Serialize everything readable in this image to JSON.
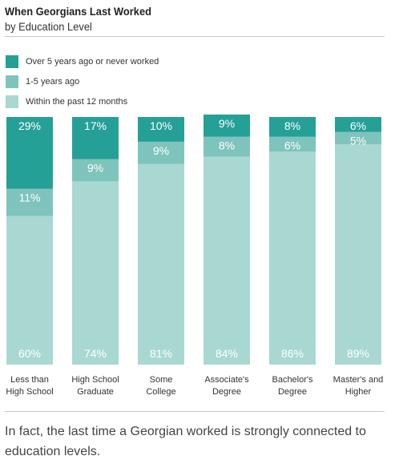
{
  "header": {
    "title": "When Georgians Last Worked",
    "subtitle": "by Education Level"
  },
  "colors": {
    "over5": "#25A097",
    "one_to_five": "#7FC4BC",
    "past12": "#A9D8D3",
    "bar_text": "#ffffff"
  },
  "legend": [
    {
      "label": "Over 5 years ago or never worked",
      "series": "over5"
    },
    {
      "label": "1-5 years ago",
      "series": "one_to_five"
    },
    {
      "label": "Within the past 12 months",
      "series": "past12"
    }
  ],
  "chart_data": {
    "type": "bar",
    "stacked": true,
    "orientation": "vertical",
    "categories": [
      [
        "Less than",
        "High School"
      ],
      [
        "High School",
        "Graduate"
      ],
      [
        "Some",
        "College"
      ],
      [
        "Associate's",
        "Degree"
      ],
      [
        "Bachelor's",
        "Degree"
      ],
      [
        "Master's and",
        "Higher"
      ]
    ],
    "series": [
      {
        "name": "Within the past 12 months",
        "key": "past12",
        "values": [
          60,
          74,
          81,
          84,
          86,
          89
        ]
      },
      {
        "name": "1-5 years ago",
        "key": "one_to_five",
        "values": [
          11,
          9,
          9,
          8,
          6,
          5
        ]
      },
      {
        "name": "Over 5 years ago or never worked",
        "key": "over5",
        "values": [
          29,
          17,
          10,
          9,
          8,
          6
        ]
      }
    ],
    "value_suffix": "%",
    "ylim": [
      0,
      100
    ],
    "grid": false,
    "legend_position": "top-left"
  },
  "caption": "In fact, the last time a Georgian worked is strongly connected to education levels."
}
